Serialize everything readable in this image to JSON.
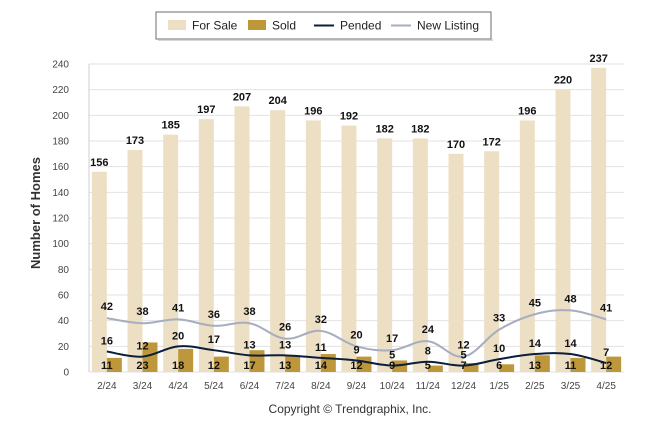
{
  "chart_data": {
    "type": "bar",
    "ylabel": "Number of Homes",
    "ylim": [
      0,
      240
    ],
    "yticks": [
      0,
      20,
      40,
      60,
      80,
      100,
      120,
      140,
      160,
      180,
      200,
      220,
      240
    ],
    "grid": true,
    "legend_position": "top-center",
    "categories": [
      "2/24",
      "3/24",
      "4/24",
      "5/24",
      "6/24",
      "7/24",
      "8/24",
      "9/24",
      "10/24",
      "11/24",
      "12/24",
      "1/25",
      "2/25",
      "3/25",
      "4/25"
    ],
    "series": [
      {
        "name": "For Sale",
        "kind": "bar",
        "color": "#ecdfc4",
        "values": [
          156,
          173,
          185,
          197,
          207,
          204,
          196,
          192,
          182,
          182,
          170,
          172,
          196,
          220,
          237
        ]
      },
      {
        "name": "Sold",
        "kind": "bar",
        "color": "#bf973b",
        "values": [
          11,
          23,
          18,
          12,
          17,
          13,
          14,
          12,
          9,
          5,
          7,
          6,
          13,
          11,
          12
        ]
      },
      {
        "name": "Pended",
        "kind": "line",
        "color": "#0b1e3a",
        "values": [
          16,
          12,
          20,
          17,
          13,
          13,
          11,
          9,
          5,
          8,
          5,
          10,
          14,
          14,
          7
        ]
      },
      {
        "name": "New Listing",
        "kind": "line",
        "color": "#a6adbf",
        "values": [
          42,
          38,
          41,
          36,
          38,
          26,
          32,
          20,
          17,
          24,
          12,
          33,
          45,
          48,
          41
        ]
      }
    ]
  },
  "footer": {
    "copyright": "Copyright © Trendgraphix, Inc."
  }
}
